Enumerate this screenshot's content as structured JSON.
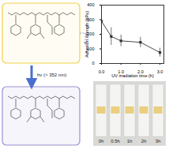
{
  "chart_data": {
    "type": "line",
    "x": [
      0,
      0.5,
      1,
      2,
      3
    ],
    "values": [
      290,
      185,
      155,
      145,
      75
    ],
    "errors": [
      40,
      60,
      40,
      35,
      30
    ],
    "xlabel": "UV irradiation time (h)",
    "ylabel": "Adhesion strength (kPa)",
    "xlim": [
      0,
      3.2
    ],
    "xticks": [
      0,
      1,
      2,
      3
    ],
    "ylim": [
      0,
      400
    ],
    "yticks": [
      0,
      100,
      200,
      300,
      400
    ],
    "color": "#333333",
    "marker": "square"
  },
  "reaction": {
    "condition": "hν (> 352 nm)"
  },
  "photos": {
    "labels": [
      "0h",
      "0.5h",
      "1h",
      "2h",
      "3h"
    ]
  }
}
